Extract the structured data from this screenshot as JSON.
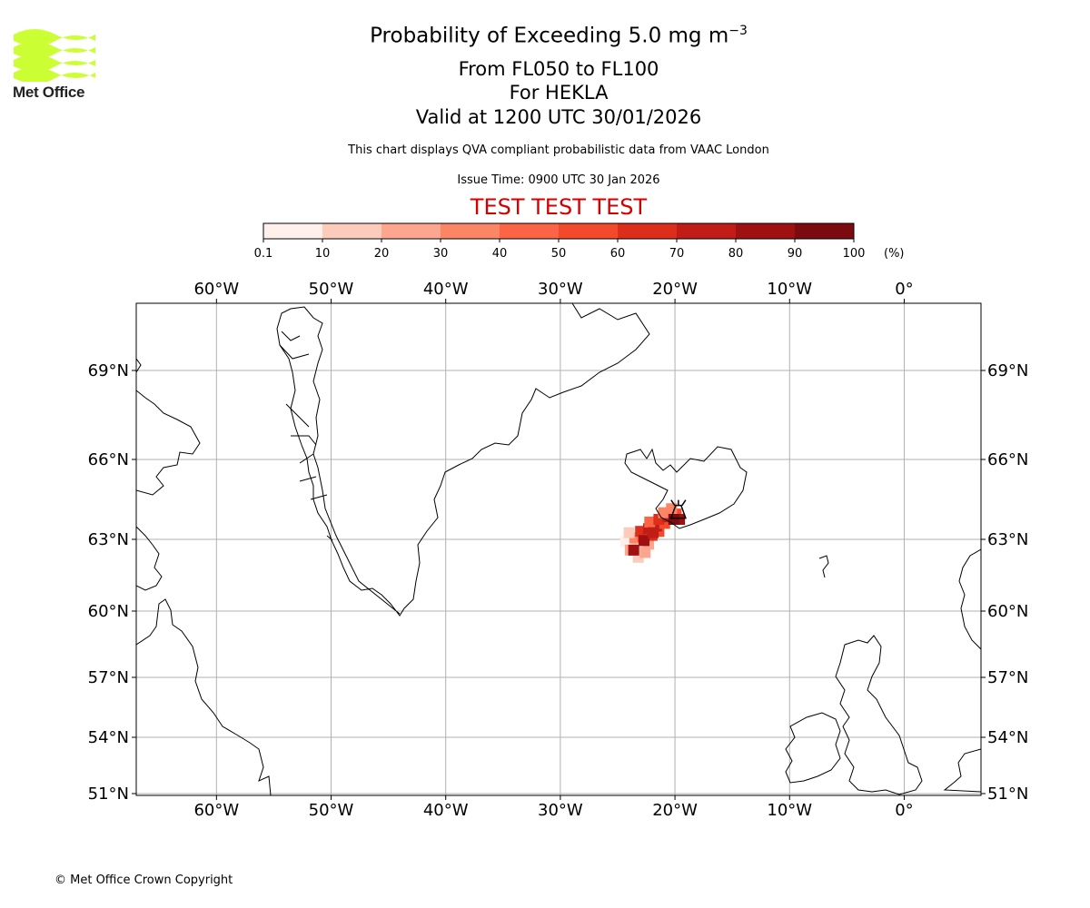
{
  "header": {
    "logo_text": "Met Office",
    "title_main": "Probability of Exceeding 5.0 mg m",
    "title_exp": "−3",
    "subtitle_levels": "From FL050 to FL100",
    "subtitle_volcano": "For HEKLA",
    "subtitle_valid": "Valid at 1200 UTC 30/01/2026",
    "note": "This chart displays QVA compliant probabilistic data from VAAC London",
    "issue_time": "Issue Time: 0900 UTC 30 Jan 2026",
    "test_banner": "TEST TEST TEST"
  },
  "colors": {
    "test_banner": "#d40000",
    "grid": "#b0b0b0",
    "coast": "#000000",
    "logo": "#ccff33"
  },
  "colorbar": {
    "ticks": [
      "0.1",
      "10",
      "20",
      "30",
      "40",
      "50",
      "60",
      "70",
      "80",
      "90",
      "100"
    ],
    "unit": "(%)",
    "colors": [
      "#fff0eb",
      "#fdcbbb",
      "#fca68f",
      "#fc8566",
      "#fb6545",
      "#f44a2c",
      "#dc2e1b",
      "#c11d16",
      "#9f1011",
      "#7b0b0e",
      "#5c0b0a"
    ]
  },
  "map": {
    "lon_labels": [
      "60°W",
      "50°W",
      "40°W",
      "30°W",
      "20°W",
      "10°W",
      "0°"
    ],
    "lon_values": [
      -60,
      -50,
      -40,
      -30,
      -20,
      -10,
      0
    ],
    "lat_labels": [
      "69°N",
      "66°N",
      "63°N",
      "60°N",
      "57°N",
      "54°N",
      "51°N"
    ],
    "lat_values": [
      69,
      66,
      63,
      60,
      57,
      54,
      51
    ],
    "extent": {
      "lon": [
        -67,
        6.7
      ],
      "lat": [
        51,
        70.6
      ]
    },
    "volcano": {
      "name": "HEKLA",
      "lon": -19.7,
      "lat": 64.0
    },
    "plume": [
      {
        "lon": -23.7,
        "lat": 62.75,
        "p": 15
      },
      {
        "lon": -24.3,
        "lat": 62.9,
        "p": 8
      },
      {
        "lon": -23.0,
        "lat": 62.5,
        "p": 15
      },
      {
        "lon": -22.3,
        "lat": 62.8,
        "p": 25
      },
      {
        "lon": -23.5,
        "lat": 63.05,
        "p": 35
      },
      {
        "lon": -22.8,
        "lat": 63.1,
        "p": 55
      },
      {
        "lon": -22.0,
        "lat": 63.15,
        "p": 60
      },
      {
        "lon": -21.4,
        "lat": 63.3,
        "p": 55
      },
      {
        "lon": -23.0,
        "lat": 63.3,
        "p": 65
      },
      {
        "lon": -22.3,
        "lat": 63.4,
        "p": 75
      },
      {
        "lon": -21.6,
        "lat": 63.5,
        "p": 70
      },
      {
        "lon": -20.9,
        "lat": 63.6,
        "p": 55
      },
      {
        "lon": -22.2,
        "lat": 63.65,
        "p": 45
      },
      {
        "lon": -21.4,
        "lat": 63.75,
        "p": 60
      },
      {
        "lon": -20.6,
        "lat": 63.85,
        "p": 70
      },
      {
        "lon": -19.9,
        "lat": 63.95,
        "p": 55
      },
      {
        "lon": -21.0,
        "lat": 64.0,
        "p": 30
      },
      {
        "lon": -20.3,
        "lat": 64.15,
        "p": 35
      },
      {
        "lon": -23.9,
        "lat": 62.55,
        "p": 20
      },
      {
        "lon": -23.2,
        "lat": 62.25,
        "p": 12
      },
      {
        "lon": -22.6,
        "lat": 62.45,
        "p": 20
      },
      {
        "lon": -24.0,
        "lat": 63.25,
        "p": 12
      },
      {
        "lon": -19.6,
        "lat": 63.75,
        "p": 85
      },
      {
        "lon": -20.1,
        "lat": 63.75,
        "p": 92
      },
      {
        "lon": -23.6,
        "lat": 62.55,
        "p": 82
      },
      {
        "lon": -22.7,
        "lat": 62.95,
        "p": 80
      },
      {
        "lon": -21.9,
        "lat": 63.25,
        "p": 78
      }
    ]
  },
  "footer": {
    "copyright": "© Met Office Crown Copyright"
  }
}
